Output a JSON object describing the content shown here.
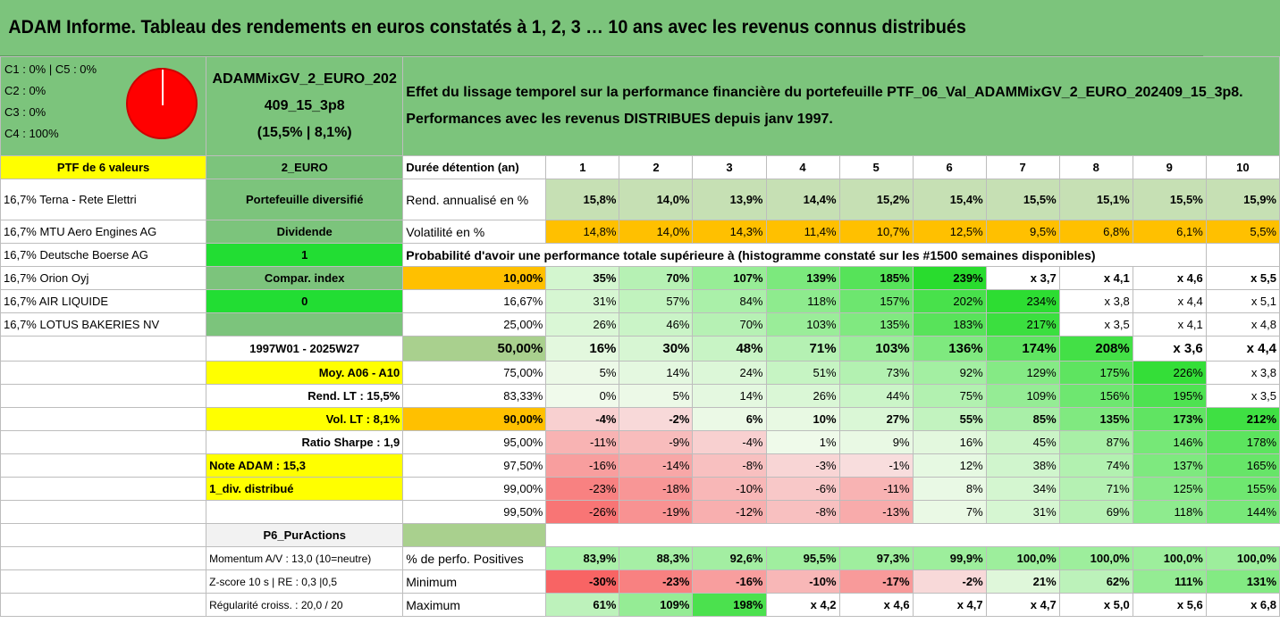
{
  "title": "ADAM Informe. Tableau des rendements en euros constatés à 1, 2, 3 … 10 ans avec les revenus connus distribués",
  "legend": [
    "C1 : 0% | C5 : 0%",
    "C2 : 0%",
    "C3 : 0%",
    "C4 : 100%"
  ],
  "fund": {
    "name_line1": "ADAMMixGV_2_EURO_202",
    "name_line2": "409_15_3p8",
    "stats": "(15,5% | 8,1%)"
  },
  "description": {
    "line1": "Effet du lissage temporel sur la performance financière du portefeuille PTF_06_Val_ADAMMixGV_2_EURO_202409_15_3p8.",
    "line2": "Performances avec les revenus DISTRIBUES depuis janv 1997."
  },
  "holdings_header": "PTF de 6 valeurs",
  "currency": "2_EURO",
  "holdings": [
    "16,7% Terna - Rete Elettri",
    "16,7% MTU Aero Engines AG",
    "16,7% Deutsche Boerse AG",
    "16,7% Orion Oyj",
    "16,7% AIR LIQUIDE",
    "16,7% LOTUS BAKERIES NV"
  ],
  "side": {
    "diversification": "Portefeuille diversifié",
    "dividend_label": "Dividende",
    "dividend_value": "1",
    "compar_label": "Compar. index",
    "compar_value": "0",
    "period": "1997W01 - 2025W27",
    "moy": "Moy. A06 - A10",
    "rend_lt": "Rend. LT : 15,5%",
    "vol_lt": "Vol. LT : 8,1%",
    "sharpe": "Ratio Sharpe : 1,9",
    "note": "Note ADAM : 15,3",
    "div_note": "1_div. distribué",
    "tag": "P6_PurActions",
    "momentum": "Momentum A/V : 13,0 (10=neutre)",
    "zscore": "Z-score 10 s | RE : 0,3 |0,5",
    "regularite": "Régularité croiss. : 20,0 / 20"
  },
  "header_label": "Durée détention (an)",
  "years": [
    "1",
    "2",
    "3",
    "4",
    "5",
    "6",
    "7",
    "8",
    "9",
    "10"
  ],
  "rend_label": "Rend. annualisé en %",
  "rend": [
    "15,8%",
    "14,0%",
    "13,9%",
    "14,4%",
    "15,2%",
    "15,4%",
    "15,5%",
    "15,1%",
    "15,5%",
    "15,9%"
  ],
  "vol_label": "Volatilité en %",
  "vol": [
    "14,8%",
    "14,0%",
    "14,3%",
    "11,4%",
    "10,7%",
    "12,5%",
    "9,5%",
    "6,8%",
    "6,1%",
    "5,5%"
  ],
  "prob_title": "Probabilité d'avoir une performance totale supérieure à (histogramme constaté sur les #1500 semaines disponibles)",
  "prob_rows": [
    {
      "pct": "10,00%",
      "vals": [
        "35%",
        "70%",
        "107%",
        "139%",
        "185%",
        "239%",
        "x 3,7",
        "x 4,1",
        "x 4,6",
        "x 5,5"
      ]
    },
    {
      "pct": "16,67%",
      "vals": [
        "31%",
        "57%",
        "84%",
        "118%",
        "157%",
        "202%",
        "234%",
        "x 3,8",
        "x 4,4",
        "x 5,1"
      ]
    },
    {
      "pct": "25,00%",
      "vals": [
        "26%",
        "46%",
        "70%",
        "103%",
        "135%",
        "183%",
        "217%",
        "x 3,5",
        "x 4,1",
        "x 4,8"
      ]
    },
    {
      "pct": "50,00%",
      "vals": [
        "16%",
        "30%",
        "48%",
        "71%",
        "103%",
        "136%",
        "174%",
        "208%",
        "x 3,6",
        "x 4,4"
      ]
    },
    {
      "pct": "75,00%",
      "vals": [
        "5%",
        "14%",
        "24%",
        "51%",
        "73%",
        "92%",
        "129%",
        "175%",
        "226%",
        "x 3,8"
      ]
    },
    {
      "pct": "83,33%",
      "vals": [
        "0%",
        "5%",
        "14%",
        "26%",
        "44%",
        "75%",
        "109%",
        "156%",
        "195%",
        "x 3,5"
      ]
    },
    {
      "pct": "90,00%",
      "vals": [
        "-4%",
        "-2%",
        "6%",
        "10%",
        "27%",
        "55%",
        "85%",
        "135%",
        "173%",
        "212%"
      ]
    },
    {
      "pct": "95,00%",
      "vals": [
        "-11%",
        "-9%",
        "-4%",
        "1%",
        "9%",
        "16%",
        "45%",
        "87%",
        "146%",
        "178%"
      ]
    },
    {
      "pct": "97,50%",
      "vals": [
        "-16%",
        "-14%",
        "-8%",
        "-3%",
        "-1%",
        "12%",
        "38%",
        "74%",
        "137%",
        "165%"
      ]
    },
    {
      "pct": "99,00%",
      "vals": [
        "-23%",
        "-18%",
        "-10%",
        "-6%",
        "-11%",
        "8%",
        "34%",
        "71%",
        "125%",
        "155%"
      ]
    },
    {
      "pct": "99,50%",
      "vals": [
        "-26%",
        "-19%",
        "-12%",
        "-8%",
        "-13%",
        "7%",
        "31%",
        "69%",
        "118%",
        "144%"
      ]
    }
  ],
  "positives_label": "% de perfo. Positives",
  "positives": [
    "83,9%",
    "88,3%",
    "92,6%",
    "95,5%",
    "97,3%",
    "99,9%",
    "100,0%",
    "100,0%",
    "100,0%",
    "100,0%"
  ],
  "min_label": "Minimum",
  "minimum": [
    "-30%",
    "-23%",
    "-16%",
    "-10%",
    "-17%",
    "-2%",
    "21%",
    "62%",
    "111%",
    "131%"
  ],
  "max_label": "Maximum",
  "maximum": [
    "61%",
    "109%",
    "198%",
    "x 4,2",
    "x 4,6",
    "x 4,7",
    "x 4,7",
    "x 5,0",
    "x 5,6",
    "x 6,8"
  ],
  "colors": {
    "header_green": "#7cc47c",
    "yellow": "#ffff00",
    "orange": "#ffc000",
    "lime": "#22dd33",
    "red_text": "#e0161c"
  }
}
